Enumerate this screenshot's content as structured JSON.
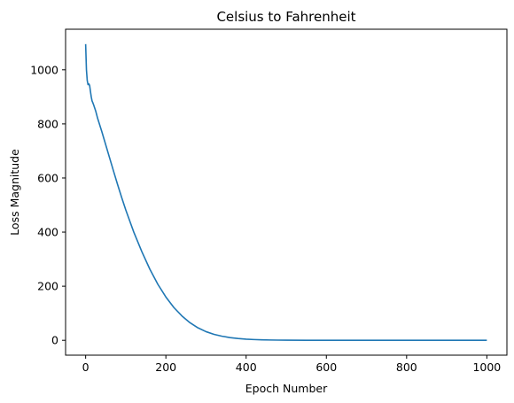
{
  "chart_data": {
    "type": "line",
    "title": "Celsius to Fahrenheit",
    "xlabel": "Epoch Number",
    "ylabel": "Loss Magnitude",
    "xlim": [
      -50,
      1050
    ],
    "ylim": [
      -55,
      1150
    ],
    "xticks": [
      0,
      200,
      400,
      600,
      800,
      1000
    ],
    "yticks": [
      0,
      200,
      400,
      600,
      800,
      1000
    ],
    "grid": false,
    "legend": "none",
    "series": [
      {
        "color": "#1f77b4",
        "x": [
          0,
          2,
          4,
          6,
          8,
          10,
          12,
          14,
          16,
          18,
          20,
          25,
          30,
          40,
          50,
          60,
          70,
          80,
          90,
          100,
          120,
          140,
          160,
          180,
          200,
          220,
          240,
          260,
          280,
          300,
          320,
          340,
          360,
          380,
          400,
          420,
          440,
          460,
          480,
          500,
          550,
          600,
          650,
          700,
          800,
          900,
          1000
        ],
        "y": [
          1095,
          1000,
          960,
          945,
          948,
          942,
          920,
          900,
          885,
          878,
          870,
          848,
          820,
          773,
          723,
          673,
          623,
          574,
          527,
          482,
          400,
          328,
          263,
          207,
          160,
          121,
          90,
          65,
          46,
          32,
          22,
          15,
          10,
          6.5,
          4.2,
          2.7,
          1.7,
          1.1,
          0.7,
          0.45,
          0.15,
          0.05,
          0.02,
          0.01,
          0,
          0,
          0
        ]
      }
    ]
  }
}
